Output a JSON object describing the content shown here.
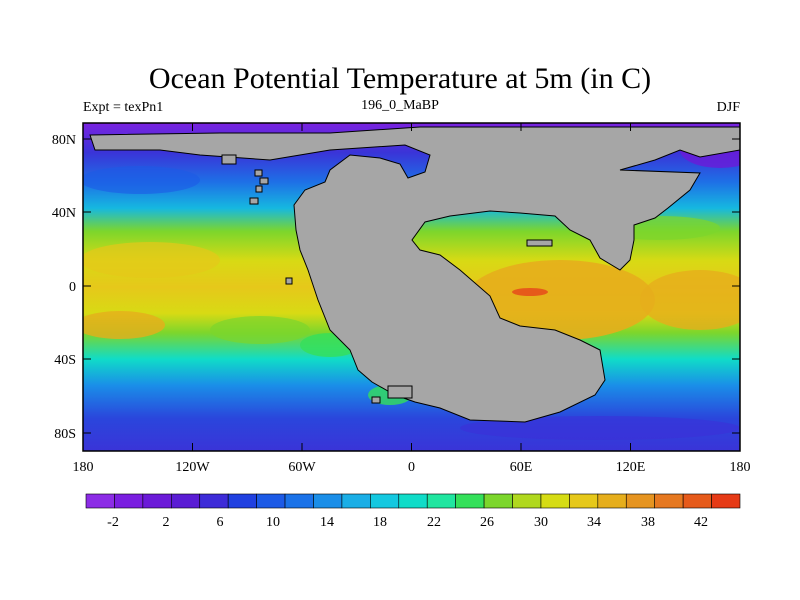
{
  "title": "Ocean Potential Temperature at 5m (in C)",
  "subtitle_left": "Expt = texPn1",
  "subtitle_center": "196_0_MaBP",
  "subtitle_right": "DJF",
  "map": {
    "lat_ticks": [
      "80N",
      "40N",
      "0",
      "40S",
      "80S"
    ],
    "lon_ticks": [
      "180",
      "120W",
      "60W",
      "0",
      "60E",
      "120E",
      "180"
    ],
    "land_color": "#a6a6a6"
  },
  "colorbar": {
    "colors": [
      "#8c2ce6",
      "#7a1ee0",
      "#6b1ad8",
      "#5a1cd4",
      "#3d2bd8",
      "#2040e0",
      "#1c5ae6",
      "#1a72e8",
      "#1a8ee8",
      "#1aaee6",
      "#14c8e0",
      "#10dcc8",
      "#20e6a0",
      "#34e05a",
      "#7cd62c",
      "#b0d81e",
      "#d6dc14",
      "#e6c81a",
      "#e6ae1c",
      "#e69420",
      "#e67820",
      "#e65a1a",
      "#e63a16"
    ],
    "labels": [
      "-2",
      "2",
      "6",
      "10",
      "14",
      "18",
      "22",
      "26",
      "30",
      "34",
      "38",
      "42"
    ]
  }
}
